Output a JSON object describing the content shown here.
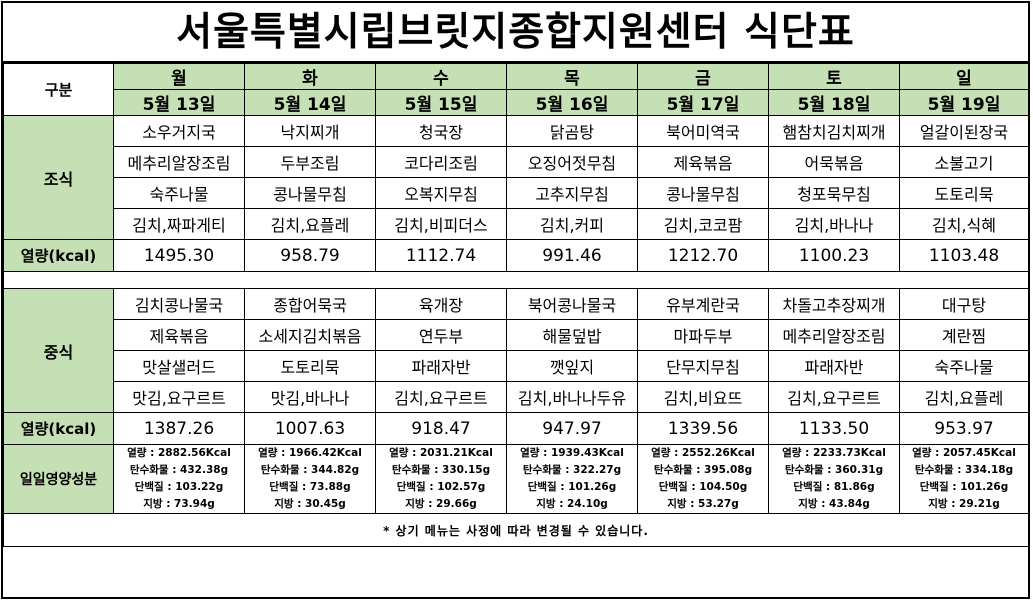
{
  "title": "서울특별시립브릿지종합지원센터  식단표",
  "header": {
    "corner": "구분",
    "days": [
      {
        "day": "월",
        "date": "5월 13일"
      },
      {
        "day": "화",
        "date": "5월 14일"
      },
      {
        "day": "수",
        "date": "5월 15일"
      },
      {
        "day": "목",
        "date": "5월 16일"
      },
      {
        "day": "금",
        "date": "5월 17일"
      },
      {
        "day": "토",
        "date": "5월 18일"
      },
      {
        "day": "일",
        "date": "5월 19일"
      }
    ]
  },
  "breakfast": {
    "label": "조식",
    "rows": [
      [
        "소우거지국",
        "낙지찌개",
        "청국장",
        "닭곰탕",
        "북어미역국",
        "햄참치김치찌개",
        "얼갈이된장국"
      ],
      [
        "메추리알장조림",
        "두부조림",
        "코다리조림",
        "오징어젓무침",
        "제육볶음",
        "어묵볶음",
        "소불고기"
      ],
      [
        "숙주나물",
        "콩나물무침",
        "오복지무침",
        "고추지무침",
        "콩나물무침",
        "청포묵무침",
        "도토리묵"
      ],
      [
        "김치,짜파게티",
        "김치,요플레",
        "김치,비피더스",
        "김치,커피",
        "김치,코코팜",
        "김치,바나나",
        "김치,식혜"
      ]
    ],
    "kcal_label": "열량(kcal)",
    "kcal": [
      "1495.30",
      "958.79",
      "1112.74",
      "991.46",
      "1212.70",
      "1100.23",
      "1103.48"
    ]
  },
  "lunch": {
    "label": "중식",
    "rows": [
      [
        "김치콩나물국",
        "종합어묵국",
        "육개장",
        "북어콩나물국",
        "유부계란국",
        "차돌고추장찌개",
        "대구탕"
      ],
      [
        "제육볶음",
        "소세지김치볶음",
        "연두부",
        "해물덮밥",
        "마파두부",
        "메추리알장조림",
        "계란찜"
      ],
      [
        "맛살샐러드",
        "도토리묵",
        "파래자반",
        "깻잎지",
        "단무지무침",
        "파래자반",
        "숙주나물"
      ],
      [
        "맛김,요구르트",
        "맛김,바나나",
        "김치,요구르트",
        "김치,바나나두유",
        "김치,비요뜨",
        "김치,요구르트",
        "김치,요플레"
      ]
    ],
    "kcal_label": "열량(kcal)",
    "kcal": [
      "1387.26",
      "1007.63",
      "918.47",
      "947.97",
      "1339.56",
      "1133.50",
      "953.97"
    ]
  },
  "nutrition": {
    "label": "일일영양성분",
    "days": [
      [
        "열량 : 2882.56Kcal",
        "탄수화물 : 432.38g",
        "단백질 : 103.22g",
        "지방 : 73.94g"
      ],
      [
        "열량 : 1966.42Kcal",
        "탄수화물 : 344.82g",
        "단백질 : 73.88g",
        "지방 : 30.45g"
      ],
      [
        "열량 : 2031.21Kcal",
        "탄수화물 : 330.15g",
        "단백질 : 102.57g",
        "지방 : 29.66g"
      ],
      [
        "열량 : 1939.43Kcal",
        "탄수화물 : 322.27g",
        "단백질 : 101.26g",
        "지방 : 24.10g"
      ],
      [
        "열량 : 2552.26Kcal",
        "탄수화물 : 395.08g",
        "단백질 : 104.50g",
        "지방 : 53.27g"
      ],
      [
        "열량 : 2233.73Kcal",
        "탄수화물 : 360.31g",
        "단백질 : 81.86g",
        "지방 : 43.84g"
      ],
      [
        "열량 : 2057.45Kcal",
        "탄수화물 : 334.18g",
        "단백질 : 101.26g",
        "지방 : 29.21g"
      ]
    ]
  },
  "footnote": "* 상기 메뉴는 사정에 따라 변경될 수 있습니다.",
  "colors": {
    "header_green": "#c5e0b4",
    "border": "#000000"
  }
}
